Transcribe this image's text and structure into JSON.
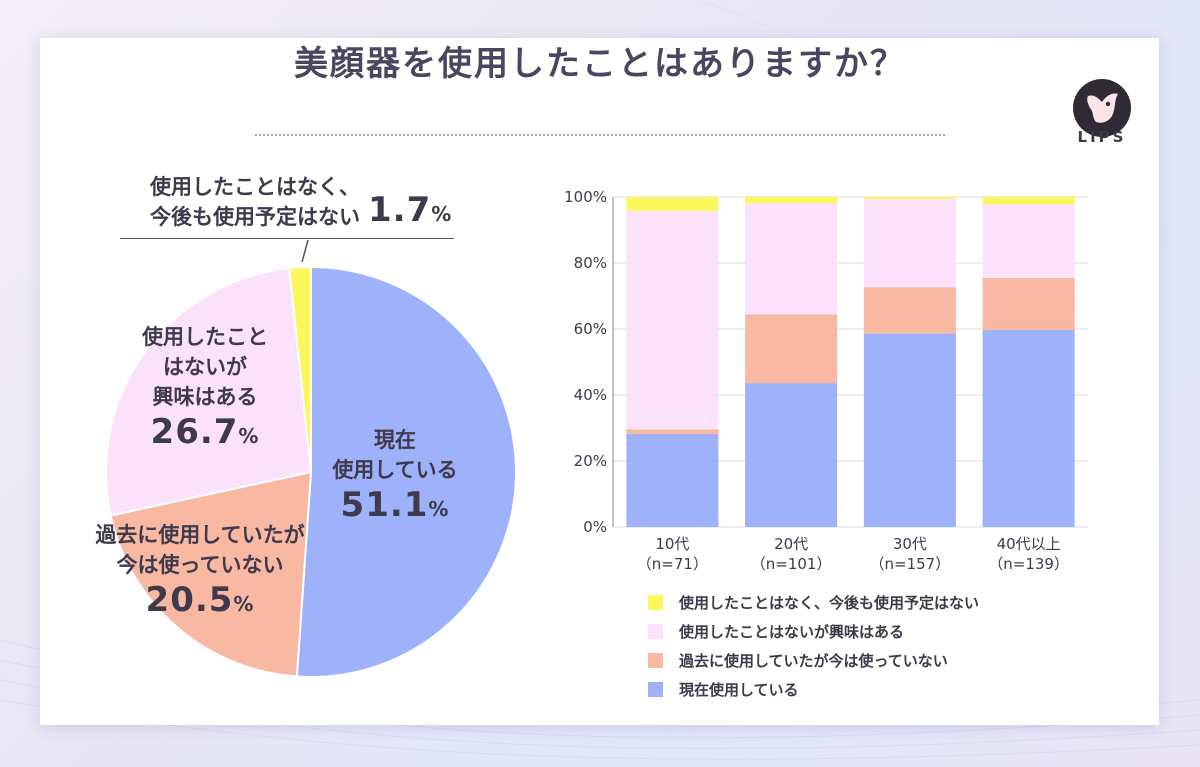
{
  "title": "美顔器を使用したことはありますか？",
  "logo": {
    "text": "LIPS"
  },
  "colors": {
    "current": "#9eb1fb",
    "past": "#f8b8a2",
    "interested": "#fce1fb",
    "never": "#fcf85c"
  },
  "chart_data": [
    {
      "type": "pie",
      "title": "美顔器を使用したことはありますか？",
      "slices": [
        {
          "key": "current",
          "label_lines": [
            "現在",
            "使用している"
          ],
          "value": 51.1,
          "value_text": "51.1",
          "unit": "%"
        },
        {
          "key": "past",
          "label_lines": [
            "過去に使用していたが",
            "今は使っていない"
          ],
          "value": 20.5,
          "value_text": "20.5",
          "unit": "%"
        },
        {
          "key": "interested",
          "label_lines": [
            "使用したこと",
            "はないが",
            "興味はある"
          ],
          "value": 26.7,
          "value_text": "26.7",
          "unit": "%"
        },
        {
          "key": "never",
          "label_lines": [
            "使用したことはなく、",
            "今後も使用予定はない"
          ],
          "value": 1.7,
          "value_text": "1.7",
          "unit": "%"
        }
      ]
    },
    {
      "type": "bar",
      "stacked": true,
      "ylim": [
        0,
        100
      ],
      "yticks": [
        "0%",
        "20%",
        "40%",
        "60%",
        "80%",
        "100%"
      ],
      "categories": [
        {
          "name": "10代",
          "n": "（n=71）"
        },
        {
          "name": "20代",
          "n": "（n=101）"
        },
        {
          "name": "30代",
          "n": "（n=157）"
        },
        {
          "name": "40代以上",
          "n": "（n=139）"
        }
      ],
      "series": [
        {
          "key": "current",
          "name": "現在使用している",
          "values": [
            28.2,
            43.6,
            58.6,
            59.7
          ]
        },
        {
          "key": "past",
          "name": "過去に使用していたが今は使っていない",
          "values": [
            1.4,
            20.8,
            14.0,
            15.8
          ]
        },
        {
          "key": "interested",
          "name": "使用したことはないが興味はある",
          "values": [
            66.2,
            33.7,
            26.8,
            22.3
          ]
        },
        {
          "key": "never",
          "name": "使用したことはなく、今後も使用予定はない",
          "values": [
            4.2,
            1.9,
            0.6,
            2.2
          ]
        }
      ],
      "legend": [
        {
          "key": "never",
          "label": "使用したことはなく、今後も使用予定はない"
        },
        {
          "key": "interested",
          "label": "使用したことはないが興味はある"
        },
        {
          "key": "past",
          "label": "過去に使用していたが今は使っていない"
        },
        {
          "key": "current",
          "label": "現在使用している"
        }
      ]
    }
  ]
}
